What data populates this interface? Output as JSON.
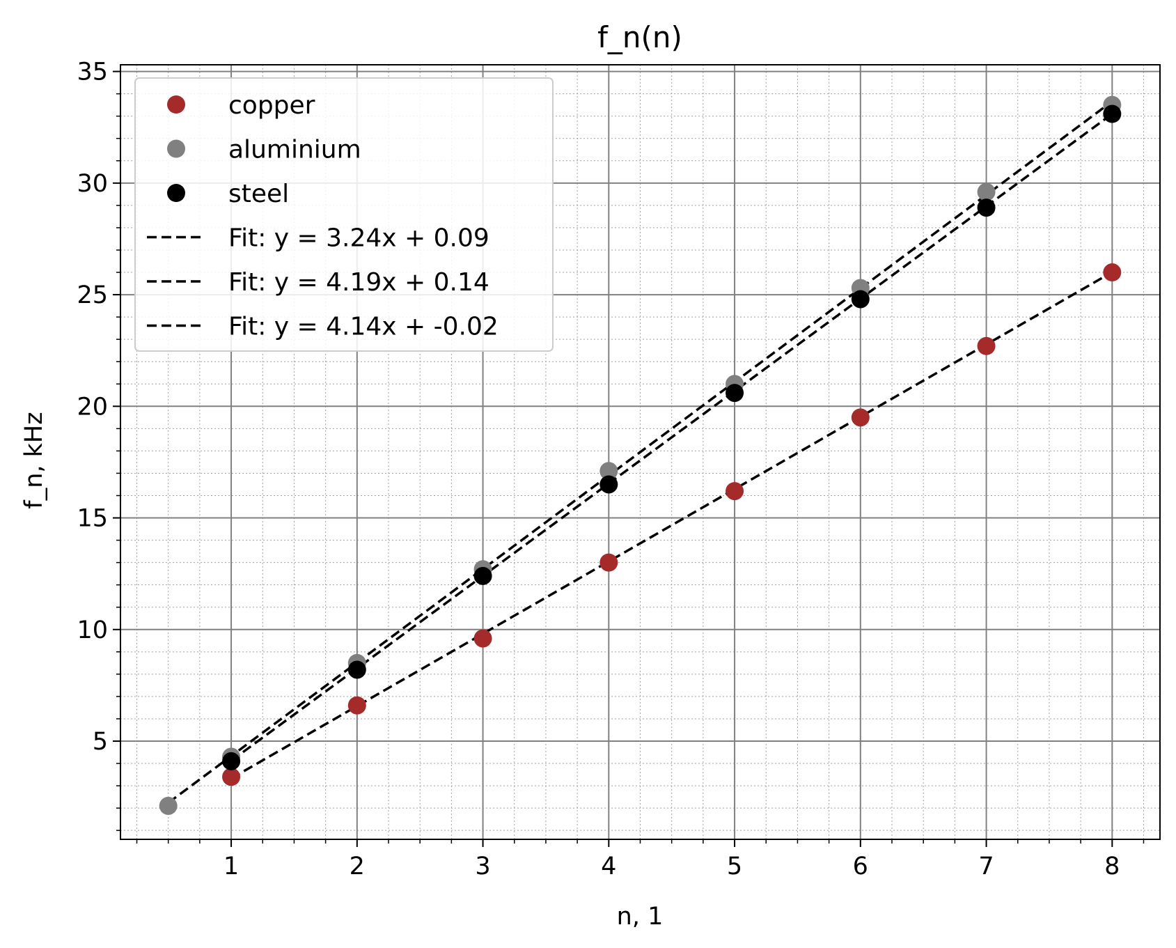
{
  "chart_data": {
    "type": "scatter",
    "title": "f_n(n)",
    "xlabel": "n, 1",
    "ylabel": "f_n, kHz",
    "xlim": [
      0.12,
      8.38
    ],
    "ylim": [
      0.6,
      35.3
    ],
    "x_major_ticks": [
      1,
      2,
      3,
      4,
      5,
      6,
      7,
      8
    ],
    "y_major_ticks": [
      5,
      10,
      15,
      20,
      25,
      30,
      35
    ],
    "x_minor_step": 0.25,
    "y_minor_step": 1,
    "grid": {
      "major": true,
      "minor": true
    },
    "legend_position": "top-left",
    "series": [
      {
        "name": "copper",
        "marker": "circle",
        "color": "#a52a2a",
        "x": [
          1,
          2,
          3,
          4,
          5,
          6,
          7,
          8
        ],
        "y": [
          3.4,
          6.6,
          9.6,
          13.0,
          16.2,
          19.5,
          22.7,
          26.0
        ]
      },
      {
        "name": "aluminium",
        "marker": "circle",
        "color": "#808080",
        "x": [
          0.5,
          1,
          2,
          3,
          4,
          5,
          6,
          7,
          8
        ],
        "y": [
          2.1,
          4.3,
          8.5,
          12.7,
          17.1,
          21.0,
          25.3,
          29.6,
          33.5
        ]
      },
      {
        "name": "steel",
        "marker": "circle",
        "color": "#000000",
        "x": [
          1,
          2,
          3,
          4,
          5,
          6,
          7,
          8
        ],
        "y": [
          4.1,
          8.2,
          12.4,
          16.5,
          20.6,
          24.8,
          28.9,
          33.1
        ]
      }
    ],
    "fits": [
      {
        "name": "Fit: y = 3.24x + 0.09",
        "slope": 3.24,
        "intercept": 0.09,
        "x_range": [
          1,
          8
        ],
        "style": "dashed",
        "color": "#000000"
      },
      {
        "name": "Fit: y = 4.19x + 0.14",
        "slope": 4.19,
        "intercept": 0.14,
        "x_range": [
          0.5,
          8
        ],
        "style": "dashed",
        "color": "#000000"
      },
      {
        "name": "Fit: y = 4.14x + -0.02",
        "slope": 4.14,
        "intercept": -0.02,
        "x_range": [
          1,
          8
        ],
        "style": "dashed",
        "color": "#000000"
      }
    ],
    "colors": {
      "major_grid": "#808080",
      "minor_grid": "#a0a0a0",
      "legend_border": "#cccccc"
    }
  }
}
